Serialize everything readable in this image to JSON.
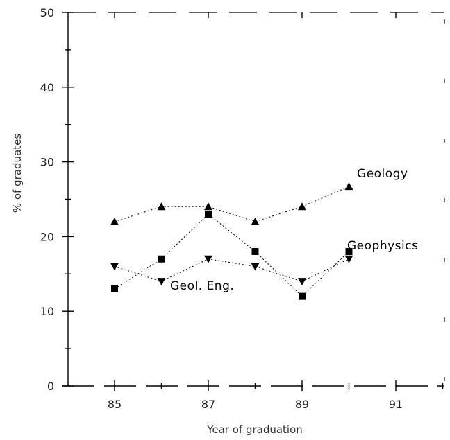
{
  "chart_data": {
    "type": "line",
    "xlabel": "Year of graduation",
    "ylabel": "% of graduates",
    "ylim": [
      0,
      50
    ],
    "xlim": [
      1984.2,
      1992.4
    ],
    "x_ticks": [
      1985,
      1987,
      1989,
      1991
    ],
    "x_tick_labels": [
      "85",
      "87",
      "89",
      "91"
    ],
    "y_ticks": [
      0,
      10,
      20,
      30,
      40,
      50
    ],
    "y_tick_labels": [
      "0",
      "10",
      "20",
      "30",
      "40",
      "50"
    ],
    "grid": false,
    "legend": "none",
    "series": [
      {
        "name": "Geology",
        "marker": "triangle-up",
        "points": [
          [
            1985,
            22
          ],
          [
            1986,
            24
          ],
          [
            1987,
            24
          ],
          [
            1988,
            22
          ],
          [
            1989,
            24
          ],
          [
            1990,
            26.7
          ]
        ]
      },
      {
        "name": "Geophysics",
        "marker": "square",
        "points": [
          [
            1985,
            13
          ],
          [
            1986,
            17
          ],
          [
            1987,
            23
          ],
          [
            1988,
            18
          ],
          [
            1989,
            12
          ],
          [
            1990,
            18
          ]
        ]
      },
      {
        "name": "Geol. Eng.",
        "marker": "triangle-down",
        "points": [
          [
            1985,
            16
          ],
          [
            1986,
            14
          ],
          [
            1987,
            17
          ],
          [
            1988,
            16
          ],
          [
            1989,
            14
          ],
          [
            1990,
            17
          ]
        ]
      }
    ],
    "annotations": [
      {
        "text": "Geology",
        "series": "Geology"
      },
      {
        "text": "Geophysics",
        "series": "Geophysics"
      },
      {
        "text": "Geol. Eng.",
        "series": "Geol. Eng."
      }
    ]
  }
}
